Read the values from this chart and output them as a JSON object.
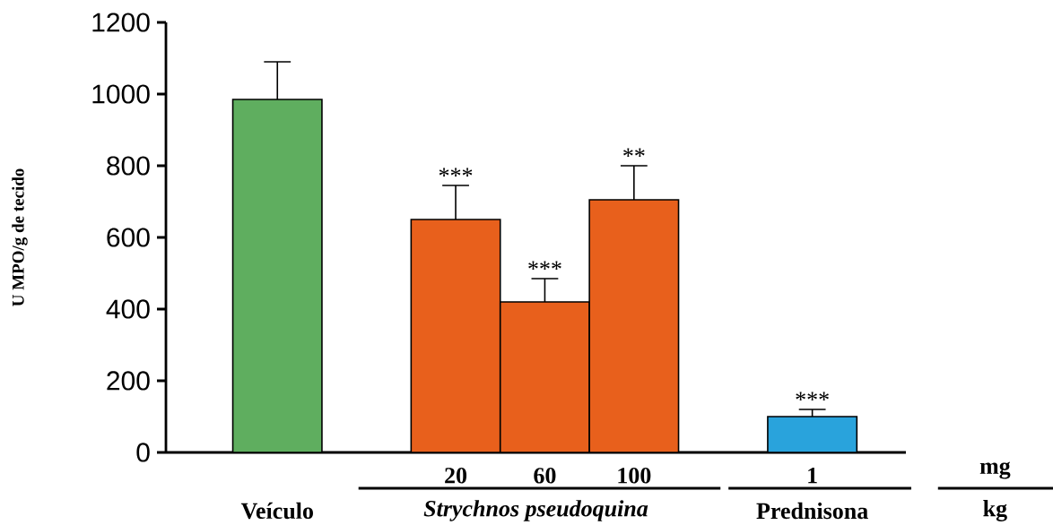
{
  "chart_data": {
    "type": "bar",
    "ylabel": "U MPO/g de tecido",
    "categories": [
      null,
      null,
      "20",
      "60",
      "100",
      null,
      "1"
    ],
    "values": [
      985,
      null,
      650,
      420,
      705,
      null,
      100
    ],
    "colors": [
      "#5fae5f",
      null,
      "#e8601c",
      "#e8601c",
      "#e8601c",
      null,
      "#29a3dc"
    ],
    "errors": [
      [
        985,
        1090
      ],
      null,
      [
        650,
        745
      ],
      [
        420,
        485
      ],
      [
        705,
        800
      ],
      null,
      [
        100,
        120
      ]
    ],
    "ylim": [
      0,
      1200
    ],
    "yticks": [
      0,
      200,
      400,
      600,
      800,
      1000,
      1200
    ],
    "annotations": [
      {
        "text": "***",
        "x": "20",
        "y": 745
      },
      {
        "text": "***",
        "x": "60",
        "y": 485
      },
      {
        "text": "**",
        "x": "100",
        "y": 800
      },
      {
        "text": "***",
        "x": "1",
        "y": 120
      },
      "mg",
      "kg",
      "Veículo",
      "Strychnos pseudoquina",
      "Prednisona"
    ]
  }
}
